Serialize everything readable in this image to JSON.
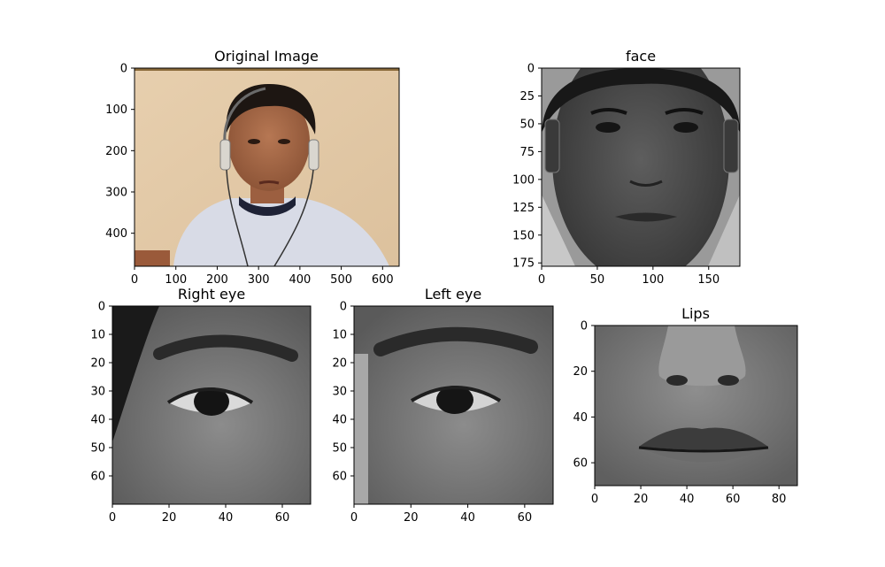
{
  "chart_data": [
    {
      "type": "image",
      "title": "Original Image",
      "image": "color photo of a man wearing headphones against a beige wall",
      "xlim": [
        0,
        640
      ],
      "ylim": [
        480,
        0
      ],
      "xticks": [
        0,
        100,
        200,
        300,
        400,
        500,
        600
      ],
      "yticks": [
        0,
        100,
        200,
        300,
        400
      ]
    },
    {
      "type": "image",
      "title": "face",
      "image": "grayscale face crop",
      "xlim": [
        0,
        178
      ],
      "ylim": [
        178,
        0
      ],
      "xticks": [
        0,
        50,
        100,
        150
      ],
      "yticks": [
        0,
        25,
        50,
        75,
        100,
        125,
        150,
        175
      ]
    },
    {
      "type": "image",
      "title": "Right eye",
      "image": "grayscale right eye crop",
      "xlim": [
        0,
        70
      ],
      "ylim": [
        70,
        0
      ],
      "xticks": [
        0,
        20,
        40,
        60
      ],
      "yticks": [
        0,
        10,
        20,
        30,
        40,
        50,
        60
      ]
    },
    {
      "type": "image",
      "title": "Left eye",
      "image": "grayscale left eye crop",
      "xlim": [
        0,
        70
      ],
      "ylim": [
        70,
        0
      ],
      "xticks": [
        0,
        20,
        40,
        60
      ],
      "yticks": [
        0,
        10,
        20,
        30,
        40,
        50,
        60
      ]
    },
    {
      "type": "image",
      "title": "Lips",
      "image": "grayscale nose and lips crop",
      "xlim": [
        0,
        88
      ],
      "ylim": [
        70,
        0
      ],
      "xticks": [
        0,
        20,
        40,
        60,
        80
      ],
      "yticks": [
        0,
        20,
        40,
        60
      ]
    }
  ]
}
